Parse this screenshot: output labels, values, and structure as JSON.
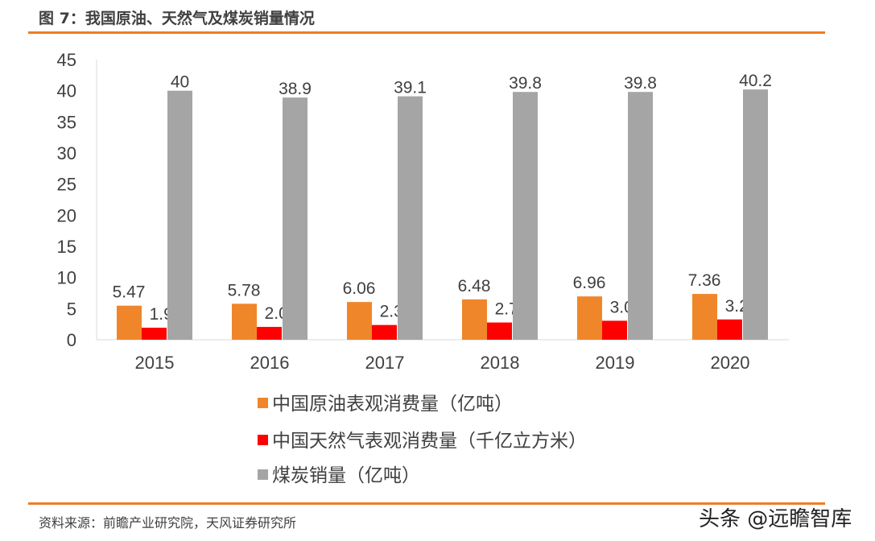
{
  "title": "图 7：我国原油、天然气及煤炭销量情况",
  "source": "资料来源：前瞻产业研究院，天风证券研究所",
  "watermark": "头条 @远瞻智库",
  "colors": {
    "accent": "#ee7d22",
    "oil": "#f0862a",
    "gas": "#ff0000",
    "coal": "#a5a5a5"
  },
  "chart_data": {
    "type": "bar",
    "categories": [
      "2015",
      "2016",
      "2017",
      "2018",
      "2019",
      "2020"
    ],
    "series": [
      {
        "name": "中国原油表观消费量（亿吨）",
        "values": [
          5.47,
          5.78,
          6.06,
          6.48,
          6.96,
          7.36
        ],
        "labels": [
          "5.47",
          "5.78",
          "6.06",
          "6.48",
          "6.96",
          "7.36"
        ]
      },
      {
        "name": "中国天然气表观消费量（千亿立方米）",
        "values": [
          1.93,
          2.06,
          2.37,
          2.77,
          3.05,
          3.26
        ],
        "labels": [
          "1.93",
          "2.06",
          "2.37",
          "2.77",
          "3.05",
          "3.26"
        ]
      },
      {
        "name": "煤炭销量（亿吨）",
        "values": [
          40,
          38.9,
          39.1,
          39.8,
          39.8,
          40.2
        ],
        "labels": [
          "40",
          "38.9",
          "39.1",
          "39.8",
          "39.8",
          "40.2"
        ]
      }
    ],
    "ylim": [
      0,
      45
    ],
    "yticks": [
      "0",
      "5",
      "10",
      "15",
      "20",
      "25",
      "30",
      "35",
      "40",
      "45"
    ],
    "grid": false,
    "legend": "bottom"
  }
}
